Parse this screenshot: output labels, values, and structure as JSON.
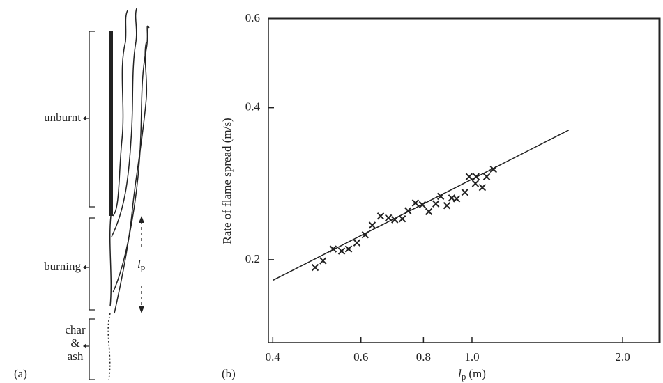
{
  "diagram": {
    "panel_label": "(a)",
    "unburnt": "unburnt",
    "burning": "burning",
    "char": "char",
    "amp": "&",
    "ash": "ash",
    "lp_symbol": "l",
    "lp_subscript": "p"
  },
  "chart_data": {
    "type": "scatter",
    "panel_label": "(b)",
    "ylabel": "Rate of flame spread (m/s)",
    "xlabel_symbol": "l",
    "xlabel_subscript": "p",
    "xlabel_unit": "(m)",
    "xscale": "log",
    "yscale": "log",
    "xlim": [
      0.392,
      2.37
    ],
    "ylim": [
      0.137,
      0.6
    ],
    "xticks": [
      0.4,
      0.6,
      0.8,
      {
        "value": 1.0,
        "label": "1.0"
      },
      {
        "value": 2.0,
        "label": "2.0"
      }
    ],
    "yticks": [
      0.2,
      0.4,
      0.6
    ],
    "series": [
      {
        "type": "scatter",
        "color": "#222222",
        "x": [
          0.486,
          0.504,
          0.528,
          0.549,
          0.567,
          0.589,
          0.612,
          0.632,
          0.657,
          0.681,
          0.701,
          0.726,
          0.745,
          0.771,
          0.796,
          0.82,
          0.847,
          0.866,
          0.891,
          0.911,
          0.932,
          0.968,
          0.987,
          1.019,
          1.016,
          1.049,
          1.07,
          1.104
        ],
        "values": [
          0.193,
          0.199,
          0.21,
          0.208,
          0.21,
          0.216,
          0.224,
          0.234,
          0.244,
          0.242,
          0.24,
          0.241,
          0.25,
          0.259,
          0.257,
          0.249,
          0.258,
          0.267,
          0.256,
          0.265,
          0.264,
          0.272,
          0.292,
          0.292,
          0.283,
          0.278,
          0.292,
          0.302
        ]
      },
      {
        "type": "line",
        "color": "#222222",
        "x": [
          0.4,
          1.56
        ],
        "values": [
          0.182,
          0.361
        ]
      }
    ]
  }
}
